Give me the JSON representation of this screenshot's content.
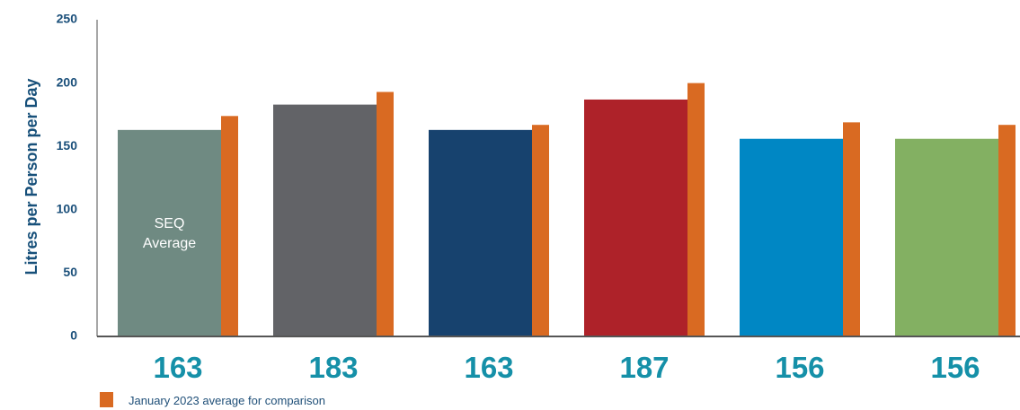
{
  "chart_data": {
    "type": "bar",
    "ylabel": "Litres per Person per Day",
    "ylim": [
      0,
      250
    ],
    "yticks": [
      0,
      50,
      100,
      150,
      200,
      250
    ],
    "grid": false,
    "legend_position": "bottom-left",
    "categories": [
      "",
      "",
      "",
      "",
      "",
      ""
    ],
    "series": [
      {
        "name": "",
        "values": [
          163,
          183,
          163,
          187,
          156,
          156
        ],
        "colors": [
          "#6f8a82",
          "#626367",
          "#17426e",
          "#ae2229",
          "#0087c4",
          "#83b062"
        ]
      },
      {
        "name": "January 2023 average for comparison",
        "values": [
          174,
          193,
          167,
          200,
          169,
          167
        ],
        "color": "#d96a22"
      }
    ],
    "value_labels": [
      "163",
      "183",
      "163",
      "187",
      "156",
      "156"
    ],
    "annotations": [
      {
        "bar_index": 0,
        "lines": [
          "SEQ",
          "Average"
        ]
      }
    ]
  }
}
